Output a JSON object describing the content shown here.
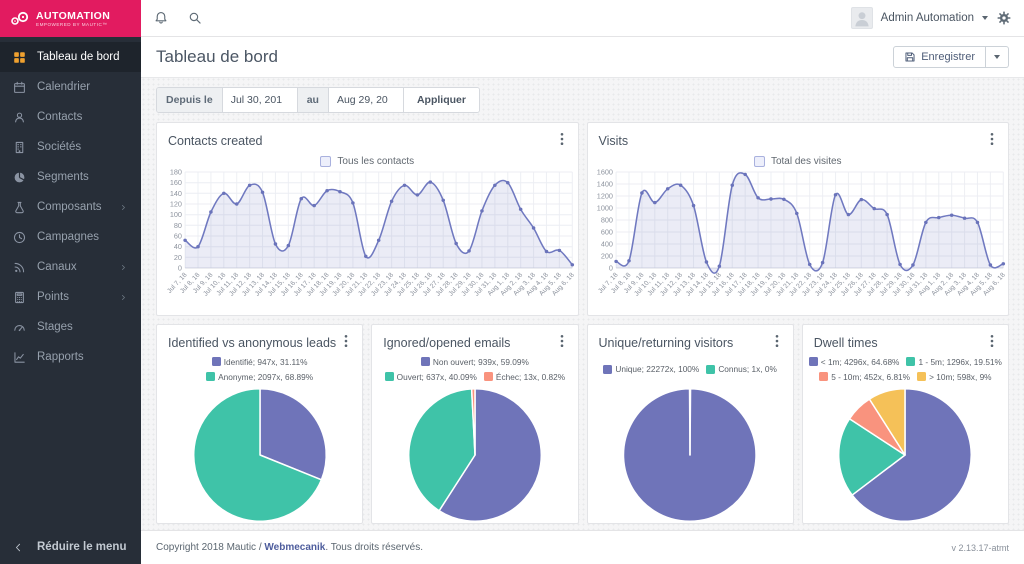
{
  "brand": {
    "line1": "AUTOMATION",
    "line2": "EMPOWERED BY MAUTIC™"
  },
  "topbar": {
    "user": "Admin Automation"
  },
  "sidebar": {
    "items": [
      {
        "label": "Tableau de bord",
        "slug": "dashboard",
        "icon": "dashboard-icon",
        "active": true,
        "hasChildren": false
      },
      {
        "label": "Calendrier",
        "slug": "calendar",
        "icon": "calendar-icon",
        "active": false,
        "hasChildren": false
      },
      {
        "label": "Contacts",
        "slug": "contacts",
        "icon": "user-icon",
        "active": false,
        "hasChildren": false
      },
      {
        "label": "Sociétés",
        "slug": "companies",
        "icon": "building-icon",
        "active": false,
        "hasChildren": false
      },
      {
        "label": "Segments",
        "slug": "segments",
        "icon": "pie-icon",
        "active": false,
        "hasChildren": false
      },
      {
        "label": "Composants",
        "slug": "components",
        "icon": "flask-icon",
        "active": false,
        "hasChildren": true
      },
      {
        "label": "Campagnes",
        "slug": "campaigns",
        "icon": "clock-icon",
        "active": false,
        "hasChildren": false
      },
      {
        "label": "Canaux",
        "slug": "channels",
        "icon": "rss-icon",
        "active": false,
        "hasChildren": true
      },
      {
        "label": "Points",
        "slug": "points",
        "icon": "calculator-icon",
        "active": false,
        "hasChildren": true
      },
      {
        "label": "Stages",
        "slug": "stages",
        "icon": "gauge-icon",
        "active": false,
        "hasChildren": false
      },
      {
        "label": "Rapports",
        "slug": "reports",
        "icon": "chart-icon",
        "active": false,
        "hasChildren": false
      }
    ],
    "collapse": {
      "label": "Réduire le menu"
    }
  },
  "page": {
    "title": "Tableau de bord"
  },
  "actions": {
    "save": "Enregistrer"
  },
  "filter": {
    "from_label": "Depuis le",
    "from_value": "Jul 30, 201",
    "to_label": "au",
    "to_value": "Aug 29, 20",
    "apply": "Appliquer"
  },
  "footer": {
    "copyright_prefix": "Copyright 2018 Mautic / ",
    "link": "Webmecanik",
    "copyright_suffix": ". Tous droits réservés.",
    "version": "v 2.13.17-atmt"
  },
  "chart_data": [
    {
      "type": "line",
      "title": "Contacts created",
      "legend_label": "Tous les contacts",
      "color": "#7079c0",
      "ylim": [
        0,
        180
      ],
      "ytick": 20,
      "grid": true,
      "legend_position": "top",
      "x": [
        "Jul 7, 18",
        "Jul 8, 18",
        "Jul 9, 18",
        "Jul 10, 18",
        "Jul 11, 18",
        "Jul 12, 18",
        "Jul 13, 18",
        "Jul 14, 18",
        "Jul 15, 18",
        "Jul 16, 18",
        "Jul 17, 18",
        "Jul 18, 18",
        "Jul 19, 18",
        "Jul 20, 18",
        "Jul 21, 18",
        "Jul 22, 18",
        "Jul 23, 18",
        "Jul 24, 18",
        "Jul 25, 18",
        "Jul 26, 18",
        "Jul 27, 18",
        "Jul 28, 18",
        "Jul 29, 18",
        "Jul 30, 18",
        "Jul 31, 18",
        "Aug 1, 18",
        "Aug 2, 18",
        "Aug 3, 18",
        "Aug 4, 18",
        "Aug 5, 18",
        "Aug 6, 18"
      ],
      "series": [
        {
          "name": "Tous les contacts",
          "values": [
            52,
            40,
            105,
            140,
            120,
            155,
            142,
            45,
            42,
            130,
            117,
            145,
            143,
            122,
            22,
            52,
            125,
            155,
            137,
            161,
            127,
            46,
            32,
            107,
            155,
            160,
            110,
            75,
            31,
            33,
            6
          ]
        }
      ]
    },
    {
      "type": "line",
      "title": "Visits",
      "legend_label": "Total des visites",
      "color": "#7079c0",
      "ylim": [
        0,
        1600
      ],
      "ytick": 200,
      "grid": true,
      "legend_position": "top",
      "x": [
        "Jul 7, 18",
        "Jul 8, 18",
        "Jul 9, 18",
        "Jul 10, 18",
        "Jul 11, 18",
        "Jul 12, 18",
        "Jul 13, 18",
        "Jul 14, 18",
        "Jul 15, 18",
        "Jul 16, 18",
        "Jul 17, 18",
        "Jul 18, 18",
        "Jul 19, 18",
        "Jul 20, 18",
        "Jul 21, 18",
        "Jul 22, 18",
        "Jul 23, 18",
        "Jul 24, 18",
        "Jul 25, 18",
        "Jul 26, 18",
        "Jul 27, 18",
        "Jul 28, 18",
        "Jul 29, 18",
        "Jul 30, 18",
        "Jul 31, 18",
        "Aug 1, 18",
        "Aug 2, 18",
        "Aug 3, 18",
        "Aug 4, 18",
        "Aug 5, 18",
        "Aug 6, 18"
      ],
      "series": [
        {
          "name": "Total des visites",
          "values": [
            110,
            120,
            1250,
            1090,
            1320,
            1380,
            1040,
            100,
            30,
            1380,
            1560,
            1170,
            1150,
            1145,
            910,
            60,
            90,
            1220,
            890,
            1140,
            990,
            890,
            60,
            50,
            760,
            840,
            880,
            830,
            760,
            50,
            70
          ]
        }
      ]
    },
    {
      "type": "pie",
      "title": "Identified vs anonymous leads",
      "slices": [
        {
          "label": "Identifié; 947x, 31.11%",
          "value": 947,
          "percent": 31.11,
          "color": "#6f74b9"
        },
        {
          "label": "Anonyme; 2097x, 68.89%",
          "value": 2097,
          "percent": 68.89,
          "color": "#3fc3a8"
        }
      ]
    },
    {
      "type": "pie",
      "title": "Ignored/opened emails",
      "slices": [
        {
          "label": "Non ouvert; 939x, 59.09%",
          "value": 939,
          "percent": 59.09,
          "color": "#6f74b9"
        },
        {
          "label": "Ouvert; 637x, 40.09%",
          "value": 637,
          "percent": 40.09,
          "color": "#3fc3a8"
        },
        {
          "label": "Échec; 13x, 0.82%",
          "value": 13,
          "percent": 0.82,
          "color": "#f9937e"
        }
      ]
    },
    {
      "type": "pie",
      "title": "Unique/returning visitors",
      "slices": [
        {
          "label": "Unique; 22272x, 100%",
          "value": 22272,
          "percent": 100,
          "color": "#6f74b9"
        },
        {
          "label": "Connus; 1x, 0%",
          "value": 1,
          "percent": 0,
          "color": "#3fc3a8"
        }
      ]
    },
    {
      "type": "pie",
      "title": "Dwell times",
      "slices": [
        {
          "label": "< 1m; 4296x, 64.68%",
          "value": 4296,
          "percent": 64.68,
          "color": "#6f74b9"
        },
        {
          "label": "1 - 5m; 1296x, 19.51%",
          "value": 1296,
          "percent": 19.51,
          "color": "#3fc3a8"
        },
        {
          "label": "5 - 10m; 452x, 6.81%",
          "value": 452,
          "percent": 6.81,
          "color": "#f9937e"
        },
        {
          "label": "> 10m; 598x, 9%",
          "value": 598,
          "percent": 9,
          "color": "#f5c158"
        }
      ]
    }
  ]
}
